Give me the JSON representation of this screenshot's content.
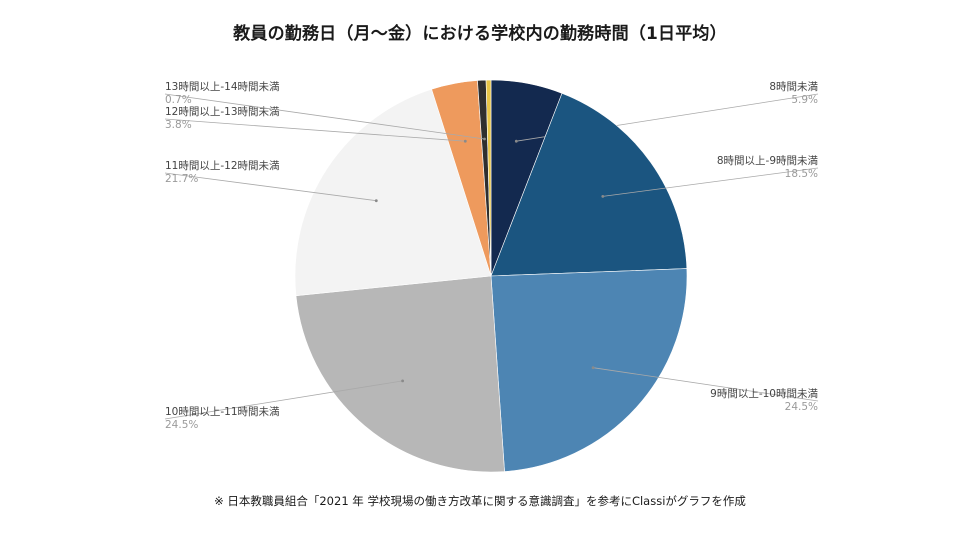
{
  "title": "教員の勤務日（月～金）における学校内の勤務時間（1日平均）",
  "footnote": "※ 日本教職員組合「2021 年 学校現場の働き方改革に関する意識調査」を参考にClassiがグラフを作成",
  "chart_data": {
    "type": "pie",
    "title": "教員の勤務日（月～金）における学校内の勤務時間（1日平均）",
    "slices": [
      {
        "label": "8時間未満",
        "value": 5.9,
        "value_label": "5.9%",
        "color": "#13294f",
        "side": "right"
      },
      {
        "label": "8時間以上-9時間未満",
        "value": 18.5,
        "value_label": "18.5%",
        "color": "#1b5580",
        "side": "right"
      },
      {
        "label": "9時間以上-10時間未満",
        "value": 24.5,
        "value_label": "24.5%",
        "color": "#4d85b3",
        "side": "right"
      },
      {
        "label": "10時間以上-11時間未満",
        "value": 24.5,
        "value_label": "24.5%",
        "color": "#b7b7b7",
        "side": "left"
      },
      {
        "label": "11時間以上-12時間未満",
        "value": 21.7,
        "value_label": "21.7%",
        "color": "#f3f3f3",
        "side": "left"
      },
      {
        "label": "12時間以上-13時間未満",
        "value": 3.8,
        "value_label": "3.8%",
        "color": "#ee9a5d",
        "side": "left"
      },
      {
        "label": "13時間以上-14時間未満",
        "value": 0.7,
        "value_label": "0.7%",
        "color": "#2f2f2f",
        "side": "left"
      },
      {
        "label": "",
        "value": 0.4,
        "value_label": "",
        "color": "#e8c547",
        "side": "none"
      }
    ]
  }
}
